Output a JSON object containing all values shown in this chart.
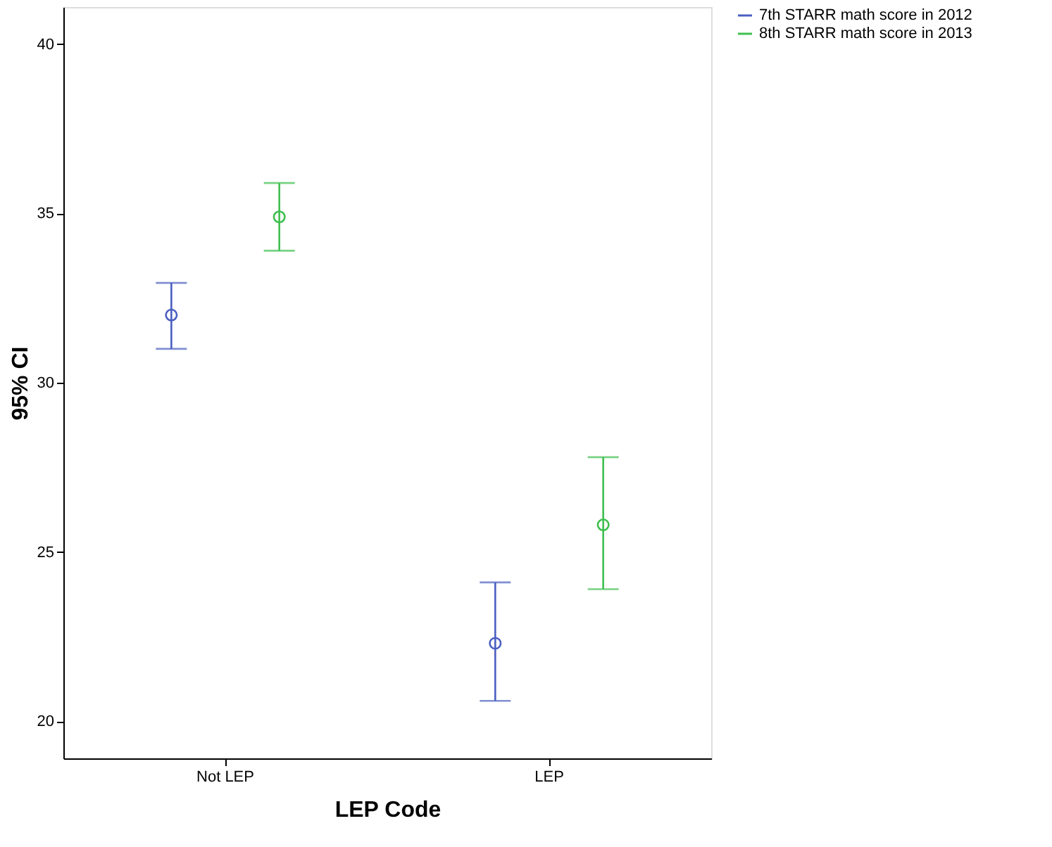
{
  "chart_data": {
    "type": "scatter",
    "xlabel": "LEP Code",
    "ylabel": "95% CI",
    "categories": [
      "Not LEP",
      "LEP"
    ],
    "series": [
      {
        "name": "7th STARR math score in 2012",
        "color": "#4a5fc1",
        "values": [
          32.0,
          22.3
        ],
        "errors": [
          [
            31.0,
            32.95
          ],
          [
            20.6,
            24.1
          ]
        ]
      },
      {
        "name": "8th STARR math score in 2013",
        "color": "#3fbf4f",
        "values": [
          34.9,
          25.8
        ],
        "errors": [
          [
            33.9,
            35.9
          ],
          [
            23.9,
            27.8
          ]
        ]
      }
    ],
    "ylim": [
      18.9,
      41.1
    ],
    "yticks": [
      20,
      25,
      30,
      35,
      40
    ],
    "grid": false,
    "legend": "top right",
    "marker": "circle"
  }
}
